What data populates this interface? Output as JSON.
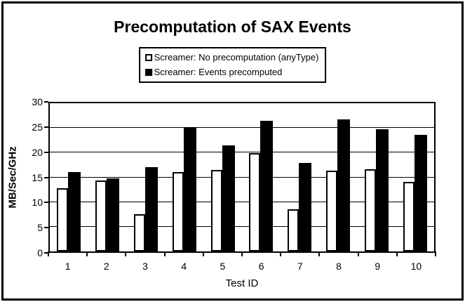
{
  "title": "Precomputation of SAX Events",
  "legend": {
    "items": [
      {
        "label": "Screamer: No precomputation (anyType)",
        "marker": "hollow-square-icon",
        "fill": "#ffffff",
        "border": "#000000"
      },
      {
        "label": "Screamer: Events precomputed",
        "marker": "solid-square-icon",
        "fill": "#000000",
        "border": "#000000"
      }
    ]
  },
  "chart_data": {
    "type": "bar",
    "title": "Precomputation of SAX Events",
    "xlabel": "Test ID",
    "ylabel": "MB/Sec/GHz",
    "ylim": [
      0,
      30
    ],
    "yticks": [
      0,
      5,
      10,
      15,
      20,
      25,
      30
    ],
    "grid": true,
    "legend_position": "top-center",
    "categories": [
      "1",
      "2",
      "3",
      "4",
      "5",
      "6",
      "7",
      "8",
      "9",
      "10"
    ],
    "series": [
      {
        "name": "Screamer: No precomputation (anyType)",
        "fill": "#ffffff",
        "outline": "#000000",
        "values": [
          12.8,
          14.3,
          7.5,
          16.1,
          16.5,
          19.9,
          8.5,
          16.3,
          16.6,
          14.1
        ]
      },
      {
        "name": "Screamer: Events precomputed",
        "fill": "#000000",
        "outline": "#000000",
        "values": [
          16.1,
          14.8,
          17.1,
          25.0,
          21.5,
          26.4,
          17.9,
          26.7,
          24.8,
          23.6
        ]
      }
    ]
  },
  "colors": {
    "background": "#ffffff",
    "frame": "#000000",
    "axis": "#000000",
    "gridline": "#000000"
  }
}
